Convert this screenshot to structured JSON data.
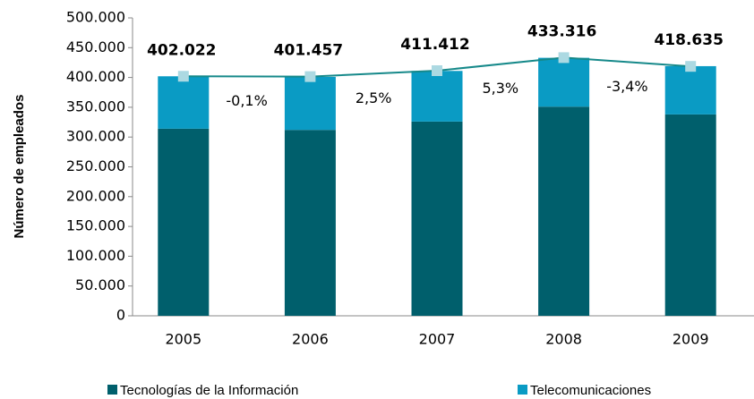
{
  "chart_data": {
    "type": "bar",
    "y_label": "Número de empleados",
    "categories": [
      "2005",
      "2006",
      "2007",
      "2008",
      "2009"
    ],
    "series": [
      {
        "name": "Tecnologías de la Información",
        "color": "#005f6c",
        "values": [
          314000,
          312000,
          326000,
          351000,
          338000
        ]
      },
      {
        "name": "Telecomunicaciones",
        "color": "#0a9bc4",
        "values": [
          88000,
          89000,
          85000,
          82000,
          81000
        ]
      }
    ],
    "line": {
      "type": "line",
      "color": "#16898a",
      "marker_color": "#acd9e2",
      "values": [
        402022,
        401457,
        411412,
        433316,
        418635
      ],
      "value_labels": [
        "402.022",
        "401.457",
        "411.412",
        "433.316",
        "418.635"
      ]
    },
    "annotations": [
      "-0,1%",
      "2,5%",
      "5,3%",
      "-3,4%"
    ],
    "ylim": [
      0,
      500000
    ],
    "yticks": [
      0,
      {
        "value": 50000,
        "label": "50.000"
      },
      {
        "value": 100000,
        "label": "100.000"
      },
      {
        "value": 150000,
        "label": "150.000"
      },
      {
        "value": 200000,
        "label": "200.000"
      },
      {
        "value": 250000,
        "label": "250.000"
      },
      {
        "value": 300000,
        "label": "300.000"
      },
      {
        "value": 350000,
        "label": "350.000"
      },
      {
        "value": 400000,
        "label": "400.000"
      },
      {
        "value": 450000,
        "label": "450.000"
      },
      {
        "value": 500000,
        "label": "500.000"
      }
    ],
    "legend": "bottom"
  }
}
